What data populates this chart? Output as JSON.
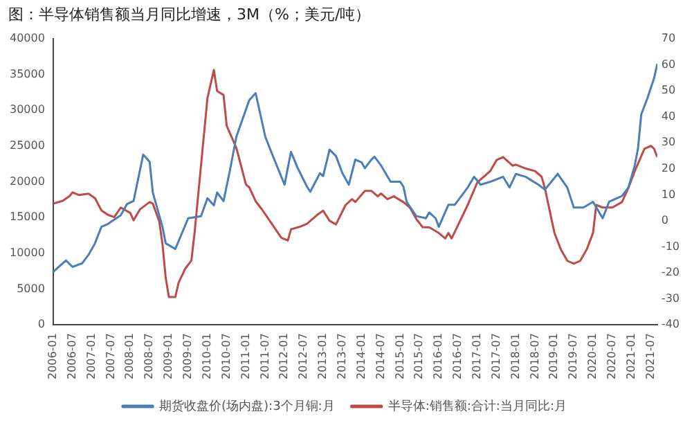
{
  "chart_data": {
    "type": "line",
    "title": "图：半导体销售额当月同比增速，3M（%；美元/吨）",
    "xlim": [
      "2006-01",
      "2021-09"
    ],
    "xticks": [
      "2006-01",
      "2006-07",
      "2007-01",
      "2007-07",
      "2008-01",
      "2008-07",
      "2009-01",
      "2009-07",
      "2010-01",
      "2010-07",
      "2011-01",
      "2011-07",
      "2012-01",
      "2012-07",
      "2013-01",
      "2013-07",
      "2014-01",
      "2014-07",
      "2015-01",
      "2015-07",
      "2016-01",
      "2016-07",
      "2017-01",
      "2017-07",
      "2018-01",
      "2018-07",
      "2019-01",
      "2019-07",
      "2020-01",
      "2020-07",
      "2021-01",
      "2021-07"
    ],
    "ylim": [
      0,
      40000
    ],
    "yticks": [
      0,
      5000,
      10000,
      15000,
      20000,
      25000,
      30000,
      35000,
      40000
    ],
    "y2lim": [
      -40,
      70
    ],
    "y2ticks": [
      -40,
      -30,
      -20,
      -10,
      0,
      10,
      20,
      30,
      40,
      50,
      60,
      70
    ],
    "grid": false,
    "legend": "bottom",
    "marker": "none",
    "line_style": "solid",
    "series": [
      {
        "name": "期货收盘价(场内盘):3个月铜:月",
        "color": "#4a7ebb",
        "x": [
          "2006-01",
          "2006-03",
          "2006-05",
          "2006-07",
          "2006-10",
          "2006-12",
          "2007-02",
          "2007-04",
          "2007-06",
          "2007-10",
          "2007-12",
          "2008-02",
          "2008-05",
          "2008-07",
          "2008-08",
          "2008-11",
          "2008-12",
          "2009-03",
          "2009-07",
          "2009-11",
          "2010-01",
          "2010-03",
          "2010-04",
          "2010-06",
          "2010-08",
          "2010-10",
          "2011-02",
          "2011-04",
          "2011-07",
          "2011-09",
          "2012-01",
          "2012-03",
          "2012-05",
          "2012-08",
          "2012-09",
          "2012-12",
          "2013-01",
          "2013-03",
          "2013-05",
          "2013-07",
          "2013-09",
          "2013-11",
          "2014-01",
          "2014-02",
          "2014-04",
          "2014-05",
          "2014-07",
          "2014-10",
          "2015-01",
          "2015-02",
          "2015-03",
          "2015-06",
          "2015-09",
          "2015-10",
          "2015-12",
          "2016-01",
          "2016-04",
          "2016-06",
          "2016-10",
          "2016-12",
          "2017-02",
          "2017-05",
          "2017-09",
          "2017-11",
          "2018-01",
          "2018-04",
          "2018-08",
          "2018-10",
          "2019-02",
          "2019-05",
          "2019-07",
          "2019-10",
          "2020-01",
          "2020-04",
          "2020-06",
          "2020-10",
          "2020-12",
          "2021-02",
          "2021-03",
          "2021-04",
          "2021-06",
          "2021-08",
          "2021-09"
        ],
        "values": [
          7400,
          8200,
          9000,
          8100,
          8600,
          9800,
          11400,
          13700,
          14100,
          15300,
          16900,
          17300,
          23800,
          22800,
          18500,
          13700,
          11400,
          10600,
          14900,
          15200,
          17700,
          16700,
          18500,
          17300,
          21600,
          26300,
          31400,
          32400,
          26300,
          24000,
          19600,
          24200,
          22000,
          19300,
          18600,
          21200,
          20800,
          24500,
          23600,
          21200,
          19600,
          23100,
          22700,
          21900,
          23100,
          23500,
          22300,
          20000,
          20000,
          19300,
          17200,
          15200,
          14900,
          15700,
          14900,
          13700,
          16800,
          16800,
          19200,
          20700,
          19600,
          20000,
          20700,
          19200,
          21100,
          20700,
          19600,
          18900,
          21100,
          19200,
          16400,
          16400,
          17200,
          14900,
          17200,
          18000,
          19200,
          22300,
          24700,
          29400,
          31800,
          34500,
          36500
        ]
      },
      {
        "name": "半导体:销售额:合计:当月同比:月",
        "color": "#be4b48",
        "axis": "y2",
        "x": [
          "2006-01",
          "2006-04",
          "2006-06",
          "2006-07",
          "2006-09",
          "2006-12",
          "2007-02",
          "2007-04",
          "2007-06",
          "2007-08",
          "2007-10",
          "2008-01",
          "2008-02",
          "2008-04",
          "2008-07",
          "2008-08",
          "2008-10",
          "2008-11",
          "2008-12",
          "2009-01",
          "2009-03",
          "2009-04",
          "2009-06",
          "2009-08",
          "2009-09",
          "2009-11",
          "2010-01",
          "2010-03",
          "2010-04",
          "2010-06",
          "2010-07",
          "2010-10",
          "2011-01",
          "2011-02",
          "2011-04",
          "2011-06",
          "2011-09",
          "2011-12",
          "2012-02",
          "2012-03",
          "2012-06",
          "2012-08",
          "2012-11",
          "2013-01",
          "2013-03",
          "2013-05",
          "2013-08",
          "2013-10",
          "2013-11",
          "2014-02",
          "2014-04",
          "2014-06",
          "2014-07",
          "2014-09",
          "2014-11",
          "2015-02",
          "2015-04",
          "2015-06",
          "2015-08",
          "2015-10",
          "2016-01",
          "2016-03",
          "2016-04",
          "2016-05",
          "2016-10",
          "2017-01",
          "2017-05",
          "2017-07",
          "2017-09",
          "2017-12",
          "2018-01",
          "2018-04",
          "2018-07",
          "2018-09",
          "2018-10",
          "2019-01",
          "2019-03",
          "2019-05",
          "2019-07",
          "2019-09",
          "2019-11",
          "2020-01",
          "2020-02",
          "2020-04",
          "2020-07",
          "2020-10",
          "2020-12",
          "2021-02",
          "2021-05",
          "2021-07",
          "2021-08",
          "2021-09"
        ],
        "values": [
          6.6,
          7.7,
          9.4,
          10.9,
          9.9,
          10.4,
          8.7,
          4,
          2.3,
          1.4,
          5.1,
          3,
          0.2,
          4.4,
          7.2,
          6.6,
          -0.2,
          -8.9,
          -21.8,
          -29.3,
          -29.3,
          -23.9,
          -18.6,
          -15.3,
          -4.6,
          21.3,
          47.2,
          58,
          49.9,
          48.4,
          36.5,
          28,
          13.9,
          12.9,
          7.5,
          4.3,
          -1.1,
          -6.5,
          -7.6,
          -3.3,
          -2.2,
          -1.1,
          2.1,
          3.9,
          0,
          -1.4,
          6.1,
          8.3,
          7.2,
          11.5,
          11.5,
          9.4,
          10.5,
          8.3,
          9.4,
          7.2,
          5.1,
          0.7,
          -2.5,
          -2.5,
          -4.7,
          -6.8,
          -4.7,
          -6.8,
          6.1,
          14.8,
          19.1,
          23.4,
          24.5,
          21.2,
          21.6,
          20.1,
          19.1,
          16.9,
          12.6,
          -4.7,
          -11.1,
          -15.4,
          -16.5,
          -15.4,
          -11.1,
          -4.7,
          6.1,
          5.1,
          5.1,
          7.2,
          12.6,
          19.1,
          27.7,
          28.8,
          27.7,
          24.5
        ]
      }
    ]
  }
}
